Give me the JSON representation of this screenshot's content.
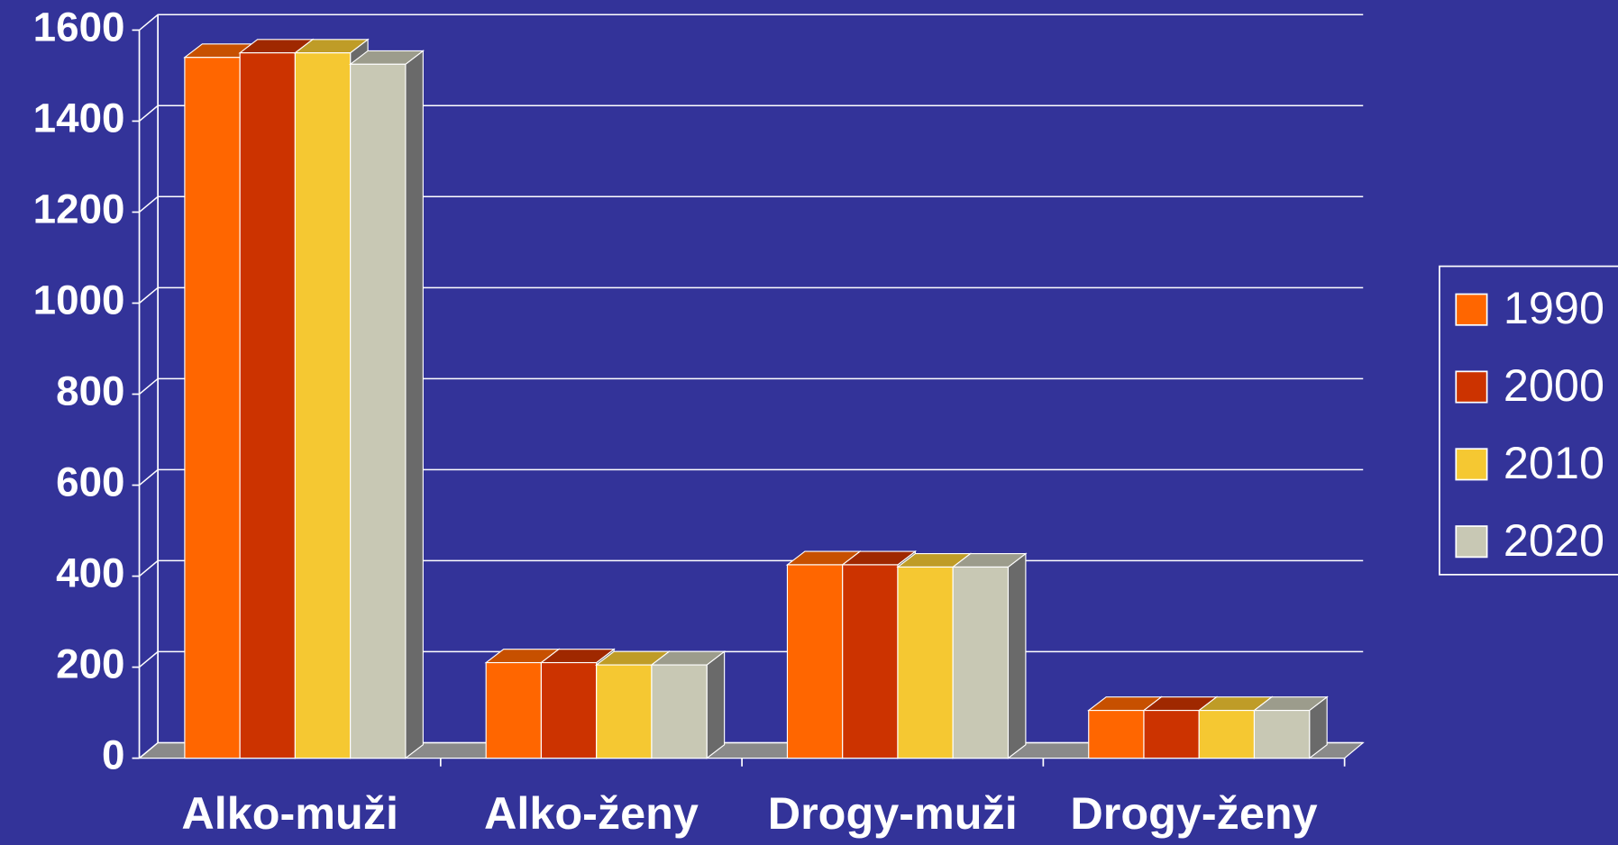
{
  "chart_data": {
    "type": "bar",
    "categories": [
      "Alko-muži",
      "Alko-ženy",
      "Drogy-muži",
      "Drogy-ženy"
    ],
    "series": [
      {
        "name": "1990",
        "color": "#ff6600",
        "values": [
          1540,
          210,
          425,
          105
        ]
      },
      {
        "name": "2000",
        "color": "#cc3300",
        "values": [
          1550,
          210,
          425,
          105
        ]
      },
      {
        "name": "2010",
        "color": "#f5c832",
        "values": [
          1550,
          205,
          420,
          105
        ]
      },
      {
        "name": "2020",
        "color": "#c8c8b4",
        "values": [
          1525,
          205,
          420,
          105
        ]
      }
    ],
    "ylim": [
      0,
      1600
    ],
    "yticks": [
      0,
      200,
      400,
      600,
      800,
      1000,
      1200,
      1400,
      1600
    ],
    "grid": true,
    "legend": "right"
  }
}
